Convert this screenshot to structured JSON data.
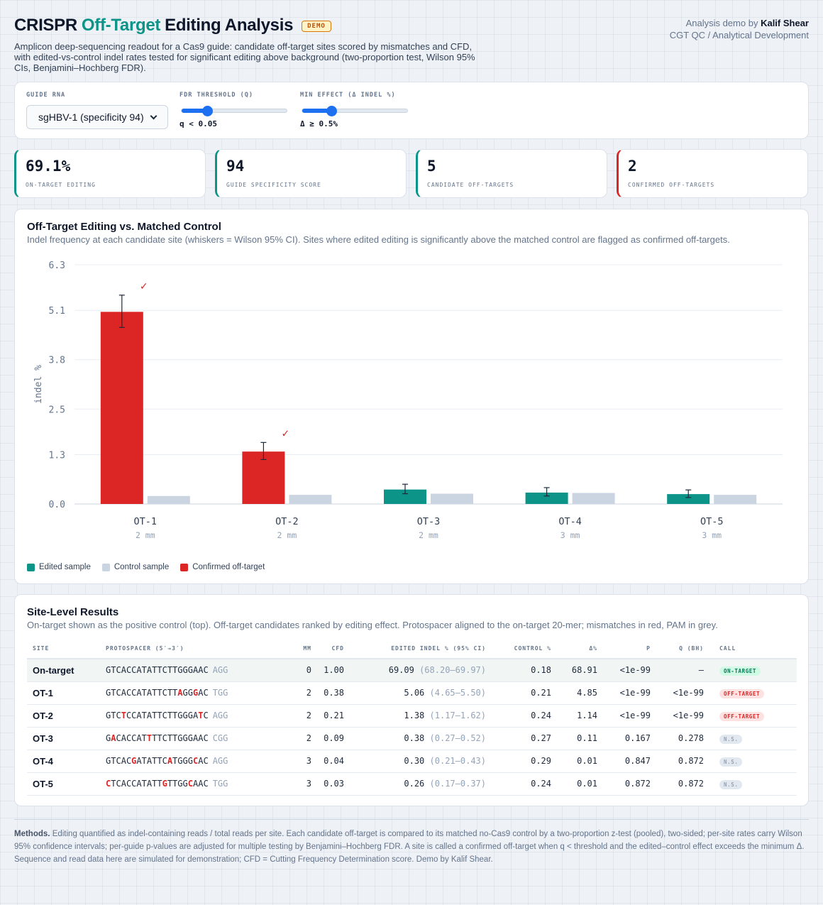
{
  "header": {
    "title_pre": "CRISPR",
    "title_accent": "Off-Target",
    "title_post": "Editing Analysis",
    "badge": "DEMO",
    "subtitle": "Amplicon deep-sequencing readout for a Cas9 guide: candidate off-target sites scored by mismatches and CFD, with edited-vs-control indel rates tested for significant editing above background (two-proportion test, Wilson 95% CIs, Benjamini–Hochberg FDR).",
    "author_prefix": "Analysis demo by",
    "author": "Kalif Shear",
    "org": "CGT QC / Analytical Development"
  },
  "controls": {
    "guide_label": "GUIDE RNA",
    "guide_value": "sgHBV-1 (specificity 94)",
    "fdr_label": "FDR THRESHOLD (Q)",
    "fdr_value": "q < 0.05",
    "fdr_level": 0.24,
    "effect_label": "MIN EFFECT (Δ INDEL %)",
    "effect_value": "Δ ≥ 0.5%",
    "effect_level": 0.27
  },
  "kpis": [
    {
      "value": "69.1%",
      "label": "ON-TARGET EDITING",
      "accent": "#0d9488"
    },
    {
      "value": "94",
      "label": "GUIDE SPECIFICITY SCORE",
      "accent": "#0d9488"
    },
    {
      "value": "5",
      "label": "CANDIDATE OFF-TARGETS",
      "accent": "#0d9488"
    },
    {
      "value": "2",
      "label": "CONFIRMED OFF-TARGETS",
      "accent": "#dc2626"
    }
  ],
  "chart_section": {
    "title": "Off-Target Editing vs. Matched Control",
    "subtitle": "Indel frequency at each candidate site (whiskers = Wilson 95% CI). Sites where edited editing is significantly above the matched control are flagged as confirmed off-targets.",
    "legend": [
      {
        "label": "Edited sample",
        "color": "#0d9488"
      },
      {
        "label": "Control sample",
        "color": "#cbd5e1"
      },
      {
        "label": "Confirmed off-target",
        "color": "#dc2626"
      }
    ]
  },
  "chart_data": {
    "type": "bar",
    "categories": [
      "OT-1",
      "OT-2",
      "OT-3",
      "OT-4",
      "OT-5"
    ],
    "sublabels": [
      "2 mm",
      "2 mm",
      "2 mm",
      "3 mm",
      "3 mm"
    ],
    "series": [
      {
        "name": "Edited sample",
        "values": [
          5.06,
          1.38,
          0.38,
          0.3,
          0.26
        ],
        "ci_low": [
          4.65,
          1.17,
          0.27,
          0.21,
          0.17
        ],
        "ci_high": [
          5.5,
          1.62,
          0.52,
          0.43,
          0.37
        ]
      },
      {
        "name": "Control sample",
        "values": [
          0.21,
          0.24,
          0.27,
          0.29,
          0.24
        ]
      }
    ],
    "confirmed": [
      true,
      true,
      false,
      false,
      false
    ],
    "confirmed_mark": "✓",
    "ylabel": "indel %",
    "yticks": [
      "0.0",
      "1.3",
      "2.5",
      "3.8",
      "5.1",
      "6.3"
    ],
    "ylim": [
      0,
      6.3
    ],
    "grid": true,
    "colors": {
      "edited": "#0d9488",
      "control": "#cbd5e1",
      "confirmed": "#dc2626"
    }
  },
  "table_section": {
    "title": "Site-Level Results",
    "subtitle": "On-target shown as the positive control (top). Off-target candidates ranked by editing effect. Protospacer aligned to the on-target 20-mer; mismatches in red, PAM in grey.",
    "columns": [
      "SITE",
      "PROTOSPACER (5′→3′)",
      "MM",
      "CFD",
      "EDITED INDEL % (95% CI)",
      "CONTROL %",
      "Δ%",
      "P",
      "Q (BH)",
      "CALL"
    ],
    "rows": [
      {
        "site": "On-target",
        "seq": "GTCACCATATTCTTGGGAAC",
        "mm_pos": [],
        "pam": "AGG",
        "mm": "0",
        "cfd": "1.00",
        "edited": "69.09",
        "ci": "(68.20–69.97)",
        "control": "0.18",
        "delta": "68.91",
        "p": "<1e-99",
        "q": "—",
        "call": "ON-TARGET",
        "call_type": "on"
      },
      {
        "site": "OT-1",
        "seq": "GTCACCATATTCTTAGGGAC",
        "mm_pos": [
          14,
          17
        ],
        "pam": "TGG",
        "mm": "2",
        "cfd": "0.38",
        "edited": "5.06",
        "ci": "(4.65–5.50)",
        "control": "0.21",
        "delta": "4.85",
        "p": "<1e-99",
        "q": "<1e-99",
        "call": "OFF-TARGET",
        "call_type": "off"
      },
      {
        "site": "OT-2",
        "seq": "GTCTCCATATTCTTGGGATC",
        "mm_pos": [
          3,
          18
        ],
        "pam": "AGG",
        "mm": "2",
        "cfd": "0.21",
        "edited": "1.38",
        "ci": "(1.17–1.62)",
        "control": "0.24",
        "delta": "1.14",
        "p": "<1e-99",
        "q": "<1e-99",
        "call": "OFF-TARGET",
        "call_type": "off"
      },
      {
        "site": "OT-3",
        "seq": "GACACCATTTTCTTGGGAAC",
        "mm_pos": [
          1,
          8
        ],
        "pam": "CGG",
        "mm": "2",
        "cfd": "0.09",
        "edited": "0.38",
        "ci": "(0.27–0.52)",
        "control": "0.27",
        "delta": "0.11",
        "p": "0.167",
        "q": "0.278",
        "call": "N.S.",
        "call_type": "ns"
      },
      {
        "site": "OT-4",
        "seq": "GTCACGATATTCATGGGCAC",
        "mm_pos": [
          5,
          12,
          17
        ],
        "pam": "AGG",
        "mm": "3",
        "cfd": "0.04",
        "edited": "0.30",
        "ci": "(0.21–0.43)",
        "control": "0.29",
        "delta": "0.01",
        "p": "0.847",
        "q": "0.872",
        "call": "N.S.",
        "call_type": "ns"
      },
      {
        "site": "OT-5",
        "seq": "CTCACCATATTGTTGGCAAC",
        "mm_pos": [
          0,
          11,
          16
        ],
        "pam": "TGG",
        "mm": "3",
        "cfd": "0.03",
        "edited": "0.26",
        "ci": "(0.17–0.37)",
        "control": "0.24",
        "delta": "0.01",
        "p": "0.872",
        "q": "0.872",
        "call": "N.S.",
        "call_type": "ns"
      }
    ]
  },
  "methods": {
    "lead": "Methods.",
    "text": "Editing quantified as indel-containing reads / total reads per site. Each candidate off-target is compared to its matched no-Cas9 control by a two-proportion z-test (pooled), two-sided; per-site rates carry Wilson 95% confidence intervals; per-guide p-values are adjusted for multiple testing by Benjamini–Hochberg FDR. A site is called a confirmed off-target when q < threshold and the edited–control effect exceeds the minimum Δ. Sequence and read data here are simulated for demonstration; CFD = Cutting Frequency Determination score. Demo by Kalif Shear."
  }
}
